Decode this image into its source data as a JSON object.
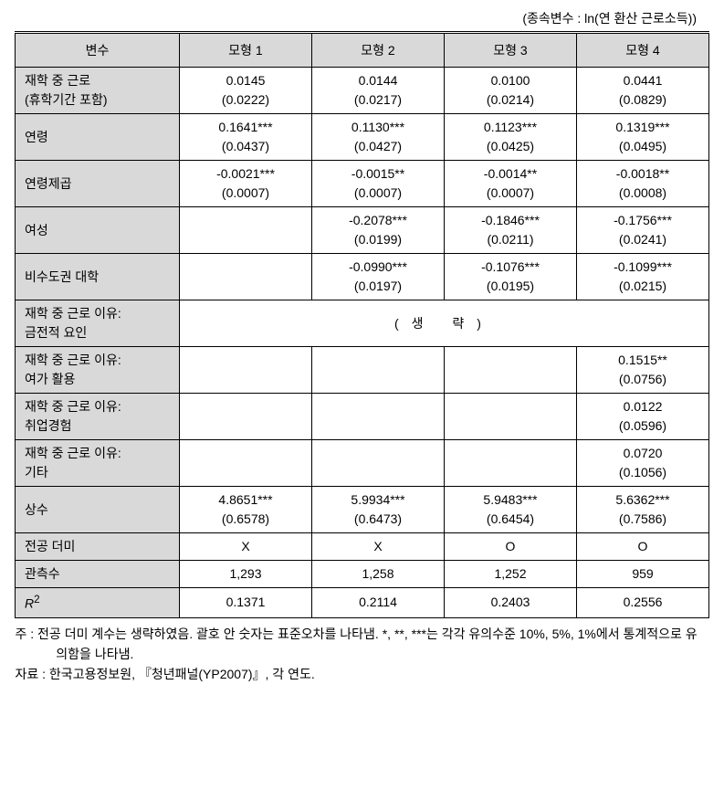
{
  "caption": "(종속변수 : ln(연 환산 근로소득))",
  "headers": {
    "var": "변수",
    "m1": "모형 1",
    "m2": "모형 2",
    "m3": "모형 3",
    "m4": "모형 4"
  },
  "rows": {
    "r1": {
      "label": "재학 중 근로\n(휴학기간 포함)",
      "m1": "0.0145\n(0.0222)",
      "m2": "0.0144\n(0.0217)",
      "m3": "0.0100\n(0.0214)",
      "m4": "0.0441\n(0.0829)"
    },
    "r2": {
      "label": "연령",
      "m1": "0.1641***\n(0.0437)",
      "m2": "0.1130***\n(0.0427)",
      "m3": "0.1123***\n(0.0425)",
      "m4": "0.1319***\n(0.0495)"
    },
    "r3": {
      "label": "연령제곱",
      "m1": "-0.0021***\n(0.0007)",
      "m2": "-0.0015**\n(0.0007)",
      "m3": "-0.0014**\n(0.0007)",
      "m4": "-0.0018**\n(0.0008)"
    },
    "r4": {
      "label": "여성",
      "m1": "",
      "m2": "-0.2078***\n(0.0199)",
      "m3": "-0.1846***\n(0.0211)",
      "m4": "-0.1756***\n(0.0241)"
    },
    "r5": {
      "label": "비수도권 대학",
      "m1": "",
      "m2": "-0.0990***\n(0.0197)",
      "m3": "-0.1076***\n(0.0195)",
      "m4": "-0.1099***\n(0.0215)"
    },
    "r6": {
      "label": "재학 중 근로 이유:\n금전적 요인",
      "merged": "(생 략)"
    },
    "r7": {
      "label": "재학 중 근로 이유:\n여가 활용",
      "m1": "",
      "m2": "",
      "m3": "",
      "m4": "0.1515**\n(0.0756)"
    },
    "r8": {
      "label": "재학 중 근로 이유:\n취업경험",
      "m1": "",
      "m2": "",
      "m3": "",
      "m4": "0.0122\n(0.0596)"
    },
    "r9": {
      "label": "재학 중 근로 이유:\n기타",
      "m1": "",
      "m2": "",
      "m3": "",
      "m4": "0.0720\n(0.1056)"
    },
    "r10": {
      "label": "상수",
      "m1": "4.8651***\n(0.6578)",
      "m2": "5.9934***\n(0.6473)",
      "m3": "5.9483***\n(0.6454)",
      "m4": "5.6362***\n(0.7586)"
    },
    "r11": {
      "label": "전공 더미",
      "m1": "X",
      "m2": "X",
      "m3": "O",
      "m4": "O"
    },
    "r12": {
      "label": "관측수",
      "m1": "1,293",
      "m2": "1,258",
      "m3": "1,252",
      "m4": "959"
    },
    "r13": {
      "label_html": "R²",
      "m1": "0.1371",
      "m2": "0.2114",
      "m3": "0.2403",
      "m4": "0.2556"
    }
  },
  "notes": {
    "line1": "주 : 전공 더미 계수는 생략하였음. 괄호 안 숫자는 표준오차를 나타냄. *, **, ***는 각각 유의수준 10%, 5%, 1%에서 통계적으로 유의함을 나타냄.",
    "line2": "자료 : 한국고용정보원, 『청년패널(YP2007)』, 각 연도."
  }
}
